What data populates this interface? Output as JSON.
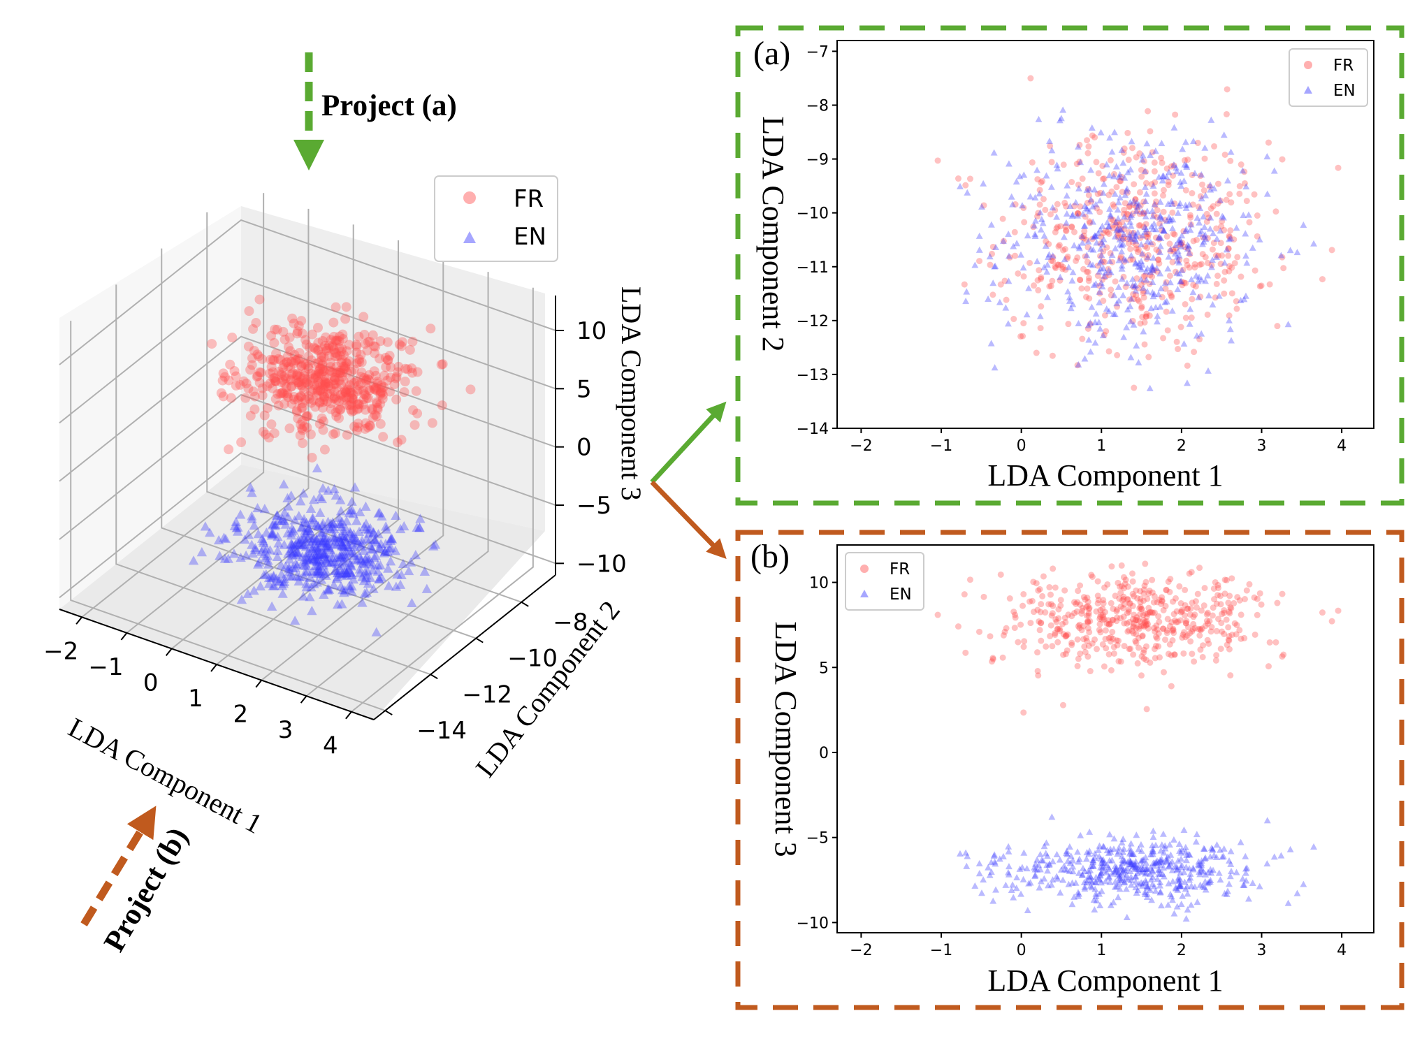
{
  "figure": {
    "project_a_label": "Project (a)",
    "project_b_label": "Project (b)",
    "colors": {
      "fr": "#ff4d4d",
      "en": "#3a3aff",
      "green": "#5aaa32",
      "brown": "#c05a1e",
      "axis": "#000000",
      "grid": "#b0b0b0",
      "pane": "#f2f2f2"
    }
  },
  "chart_data": [
    {
      "id": "3d",
      "type": "scatter",
      "title": "",
      "xlabel": "LDA Component 1",
      "ylabel": "LDA Component 2",
      "zlabel": "LDA Component 3",
      "xlim": [
        -2.5,
        4.5
      ],
      "ylim": [
        -14.5,
        -6.5
      ],
      "zlim": [
        -11,
        13
      ],
      "xticks": [
        -2,
        -1,
        0,
        1,
        2,
        3,
        4
      ],
      "yticks": [
        -14,
        -12,
        -10,
        -8
      ],
      "zticks": [
        -10,
        -5,
        0,
        5,
        10
      ],
      "legend": {
        "location": "top-right",
        "entries": [
          "FR",
          "EN"
        ]
      },
      "series": [
        {
          "name": "FR",
          "marker": "circle",
          "count": 500,
          "x_mean": 1.4,
          "x_std": 0.85,
          "y_mean": -10.5,
          "y_std": 1.0,
          "z_mean": 7.8,
          "z_std": 1.3
        },
        {
          "name": "EN",
          "marker": "triangle",
          "count": 500,
          "x_mean": 1.4,
          "x_std": 0.85,
          "y_mean": -10.5,
          "y_std": 1.0,
          "z_mean": -6.9,
          "z_std": 0.9
        }
      ]
    },
    {
      "id": "a",
      "panel_label": "(a)",
      "type": "scatter",
      "title": "",
      "xlabel": "LDA Component 1",
      "ylabel": "LDA Component 2",
      "xlim": [
        -2.3,
        4.4
      ],
      "ylim": [
        -14.0,
        -6.8
      ],
      "xticks": [
        -2,
        -1,
        0,
        1,
        2,
        3,
        4
      ],
      "yticks": [
        -14,
        -13,
        -12,
        -11,
        -10,
        -9,
        -8,
        -7
      ],
      "legend": {
        "location": "top-right",
        "entries": [
          "FR",
          "EN"
        ]
      },
      "series": [
        {
          "name": "FR",
          "marker": "circle",
          "count": 500,
          "x_mean": 1.4,
          "x_std": 0.85,
          "y_mean": -10.5,
          "y_std": 1.0
        },
        {
          "name": "EN",
          "marker": "triangle",
          "count": 500,
          "x_mean": 1.4,
          "x_std": 0.85,
          "y_mean": -10.5,
          "y_std": 1.0
        }
      ]
    },
    {
      "id": "b",
      "panel_label": "(b)",
      "type": "scatter",
      "title": "",
      "xlabel": "LDA Component 1",
      "ylabel": "LDA Component 3",
      "xlim": [
        -2.3,
        4.4
      ],
      "ylim": [
        -10.6,
        12.2
      ],
      "xticks": [
        -2,
        -1,
        0,
        1,
        2,
        3,
        4
      ],
      "yticks": [
        -10,
        -5,
        0,
        5,
        10
      ],
      "legend": {
        "location": "top-left",
        "entries": [
          "FR",
          "EN"
        ]
      },
      "series": [
        {
          "name": "FR",
          "marker": "circle",
          "count": 500,
          "x_mean": 1.4,
          "x_std": 0.85,
          "y_mean": 7.8,
          "y_std": 1.3
        },
        {
          "name": "EN",
          "marker": "triangle",
          "count": 500,
          "x_mean": 1.4,
          "x_std": 0.85,
          "y_mean": -6.9,
          "y_std": 0.9
        }
      ]
    }
  ]
}
